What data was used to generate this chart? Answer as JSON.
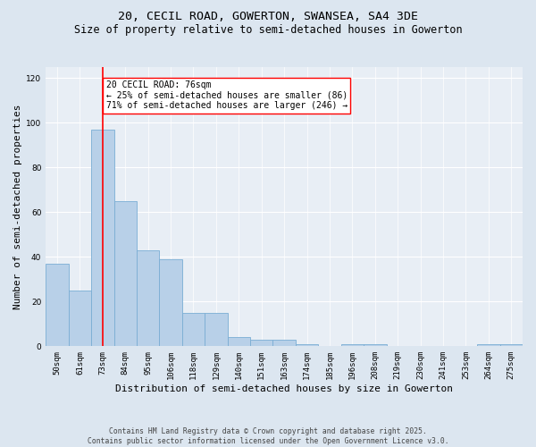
{
  "title": "20, CECIL ROAD, GOWERTON, SWANSEA, SA4 3DE",
  "subtitle": "Size of property relative to semi-detached houses in Gowerton",
  "xlabel": "Distribution of semi-detached houses by size in Gowerton",
  "ylabel": "Number of semi-detached properties",
  "categories": [
    "50sqm",
    "61sqm",
    "73sqm",
    "84sqm",
    "95sqm",
    "106sqm",
    "118sqm",
    "129sqm",
    "140sqm",
    "151sqm",
    "163sqm",
    "174sqm",
    "185sqm",
    "196sqm",
    "208sqm",
    "219sqm",
    "230sqm",
    "241sqm",
    "253sqm",
    "264sqm",
    "275sqm"
  ],
  "values": [
    37,
    25,
    97,
    65,
    43,
    39,
    15,
    15,
    4,
    3,
    3,
    1,
    0,
    1,
    1,
    0,
    0,
    0,
    0,
    1,
    1
  ],
  "bar_color": "#b8d0e8",
  "bar_edge_color": "#7aadd4",
  "red_line_index": 2,
  "annotation_text": "20 CECIL ROAD: 76sqm\n← 25% of semi-detached houses are smaller (86)\n71% of semi-detached houses are larger (246) →",
  "ylim": [
    0,
    125
  ],
  "yticks": [
    0,
    20,
    40,
    60,
    80,
    100,
    120
  ],
  "footer_line1": "Contains HM Land Registry data © Crown copyright and database right 2025.",
  "footer_line2": "Contains public sector information licensed under the Open Government Licence v3.0.",
  "bg_color": "#dce6f0",
  "plot_bg_color": "#e8eef5",
  "grid_color": "#ffffff",
  "title_fontsize": 9.5,
  "subtitle_fontsize": 8.5,
  "tick_fontsize": 6.5,
  "axis_label_fontsize": 8,
  "footer_fontsize": 5.8,
  "annotation_fontsize": 7.0
}
